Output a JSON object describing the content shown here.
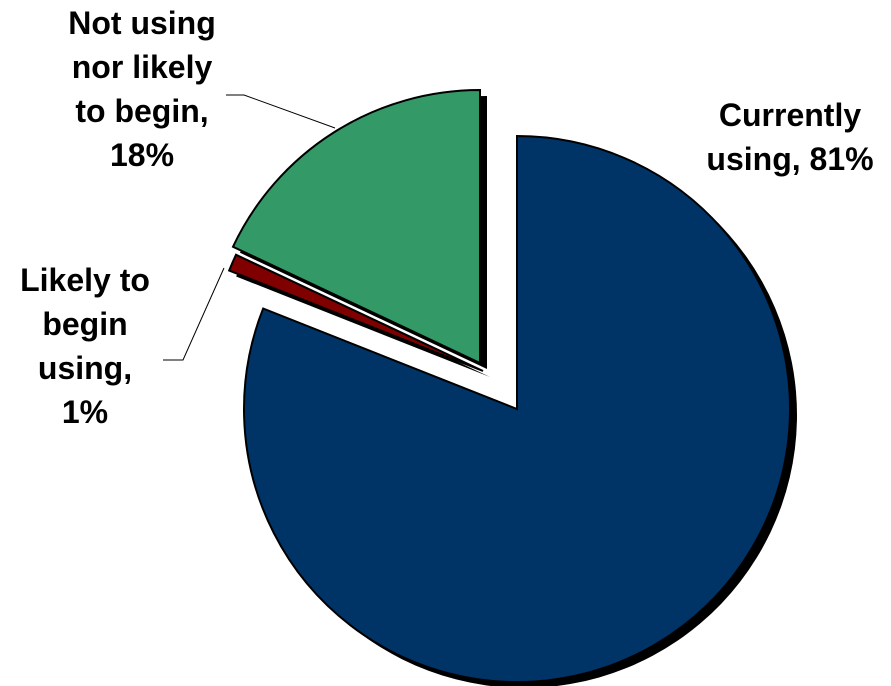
{
  "chart_data": {
    "type": "pie",
    "title": "",
    "exploded": true,
    "shadow": true,
    "slices": [
      {
        "label_lines": [
          "Currently",
          "using, 81%"
        ],
        "category": "Currently using",
        "value": 81,
        "color": "#003366"
      },
      {
        "label_lines": [
          "Likely to",
          "begin",
          "using,",
          "1%"
        ],
        "category": "Likely to begin using",
        "value": 1,
        "color": "#800000"
      },
      {
        "label_lines": [
          "Not using",
          "nor likely",
          "to begin,",
          "18%"
        ],
        "category": "Not using nor likely to begin",
        "value": 18,
        "color": "#339966"
      }
    ]
  }
}
